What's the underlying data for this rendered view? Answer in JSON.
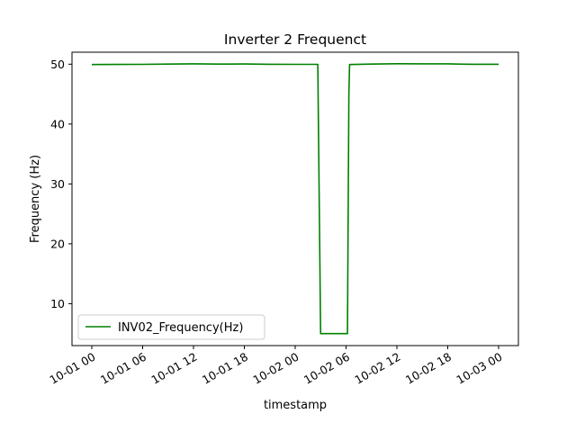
{
  "chart_data": {
    "type": "line",
    "title": "Inverter 2 Frequenct",
    "xlabel": "timestamp",
    "ylabel": "Frequency (Hz)",
    "x_axis_type": "datetime",
    "x_range": [
      "2020-10-01 00:00",
      "2020-10-03 00:00"
    ],
    "ylim": [
      3,
      52
    ],
    "grid": false,
    "legend_position": "lower-left",
    "x_ticks": [
      {
        "t": "2020-10-01 00:00",
        "label": "10-01 00"
      },
      {
        "t": "2020-10-01 06:00",
        "label": "10-01 06"
      },
      {
        "t": "2020-10-01 12:00",
        "label": "10-01 12"
      },
      {
        "t": "2020-10-01 18:00",
        "label": "10-01 18"
      },
      {
        "t": "2020-10-02 00:00",
        "label": "10-02 00"
      },
      {
        "t": "2020-10-02 06:00",
        "label": "10-02 06"
      },
      {
        "t": "2020-10-02 12:00",
        "label": "10-02 12"
      },
      {
        "t": "2020-10-02 18:00",
        "label": "10-02 18"
      },
      {
        "t": "2020-10-03 00:00",
        "label": "10-03 00"
      }
    ],
    "y_ticks": [
      {
        "v": 10,
        "label": "10"
      },
      {
        "v": 20,
        "label": "20"
      },
      {
        "v": 30,
        "label": "30"
      },
      {
        "v": 40,
        "label": "40"
      },
      {
        "v": 50,
        "label": "50"
      }
    ],
    "series": [
      {
        "name": "INV02_Frequency(Hz)",
        "color": "#008000",
        "points": [
          [
            "2020-10-01 00:00",
            49.95
          ],
          [
            "2020-10-01 06:00",
            49.97
          ],
          [
            "2020-10-01 09:00",
            50.02
          ],
          [
            "2020-10-01 12:00",
            50.05
          ],
          [
            "2020-10-01 15:00",
            50.02
          ],
          [
            "2020-10-01 18:00",
            50.03
          ],
          [
            "2020-10-01 21:00",
            49.98
          ],
          [
            "2020-10-02 00:00",
            49.97
          ],
          [
            "2020-10-02 02:40",
            49.97
          ],
          [
            "2020-10-02 03:00",
            5.0
          ],
          [
            "2020-10-02 06:10",
            5.0
          ],
          [
            "2020-10-02 06:20",
            45.0
          ],
          [
            "2020-10-02 06:25",
            49.95
          ],
          [
            "2020-10-02 09:00",
            50.02
          ],
          [
            "2020-10-02 12:00",
            50.08
          ],
          [
            "2020-10-02 15:00",
            50.05
          ],
          [
            "2020-10-02 18:00",
            50.05
          ],
          [
            "2020-10-02 21:00",
            49.98
          ],
          [
            "2020-10-03 00:00",
            49.98
          ]
        ]
      }
    ]
  }
}
